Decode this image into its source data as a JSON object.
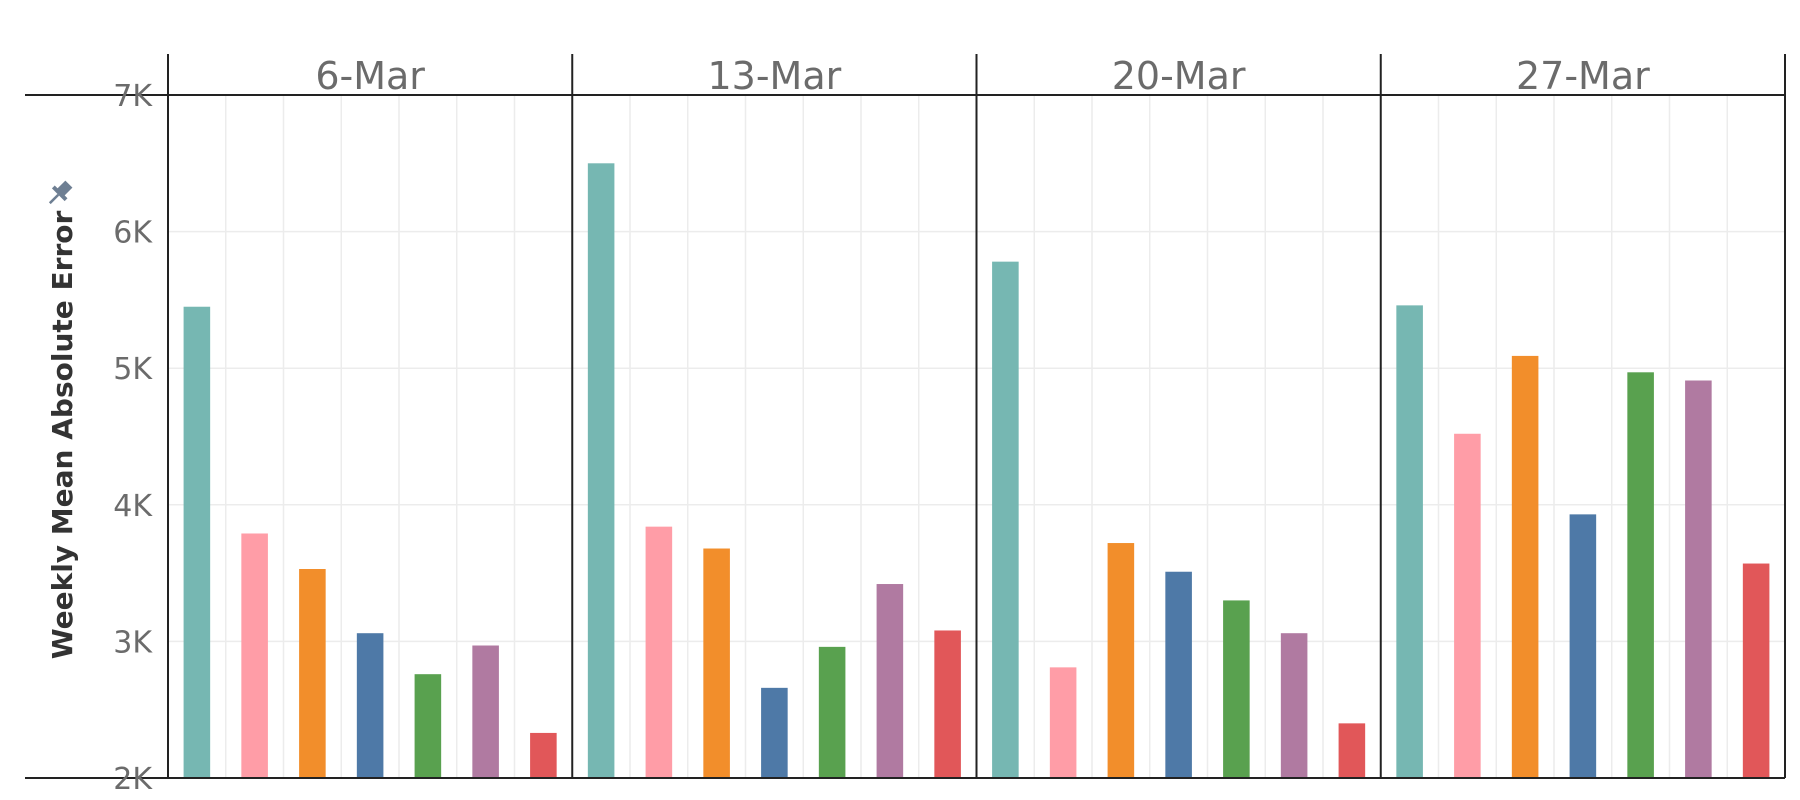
{
  "chart_data": {
    "type": "bar",
    "panels": [
      "6-Mar",
      "13-Mar",
      "20-Mar",
      "27-Mar"
    ],
    "ylabel": "Weekly Mean Absolute Error",
    "ylim": [
      2000,
      7000
    ],
    "yticks": [
      {
        "value": 2000,
        "label": "2K"
      },
      {
        "value": 3000,
        "label": "3K"
      },
      {
        "value": 4000,
        "label": "4K"
      },
      {
        "value": 5000,
        "label": "5K"
      },
      {
        "value": 6000,
        "label": "6K"
      },
      {
        "value": 7000,
        "label": "7K"
      }
    ],
    "grid": true,
    "series": [
      {
        "color": "#76b7b2",
        "values": [
          5450,
          6500,
          5780,
          5460
        ]
      },
      {
        "color": "#ff9da7",
        "values": [
          3790,
          3840,
          2810,
          4520
        ]
      },
      {
        "color": "#f28e2b",
        "values": [
          3530,
          3680,
          3720,
          5090
        ]
      },
      {
        "color": "#4e79a7",
        "values": [
          3060,
          2660,
          3510,
          3930
        ]
      },
      {
        "color": "#59a14f",
        "values": [
          2760,
          2960,
          3300,
          4970
        ]
      },
      {
        "color": "#b07aa1",
        "values": [
          2970,
          3420,
          3060,
          4910
        ]
      },
      {
        "color": "#e15759",
        "values": [
          2330,
          3080,
          2400,
          3570
        ]
      }
    ]
  },
  "icons": {
    "pin": "pin-icon"
  }
}
